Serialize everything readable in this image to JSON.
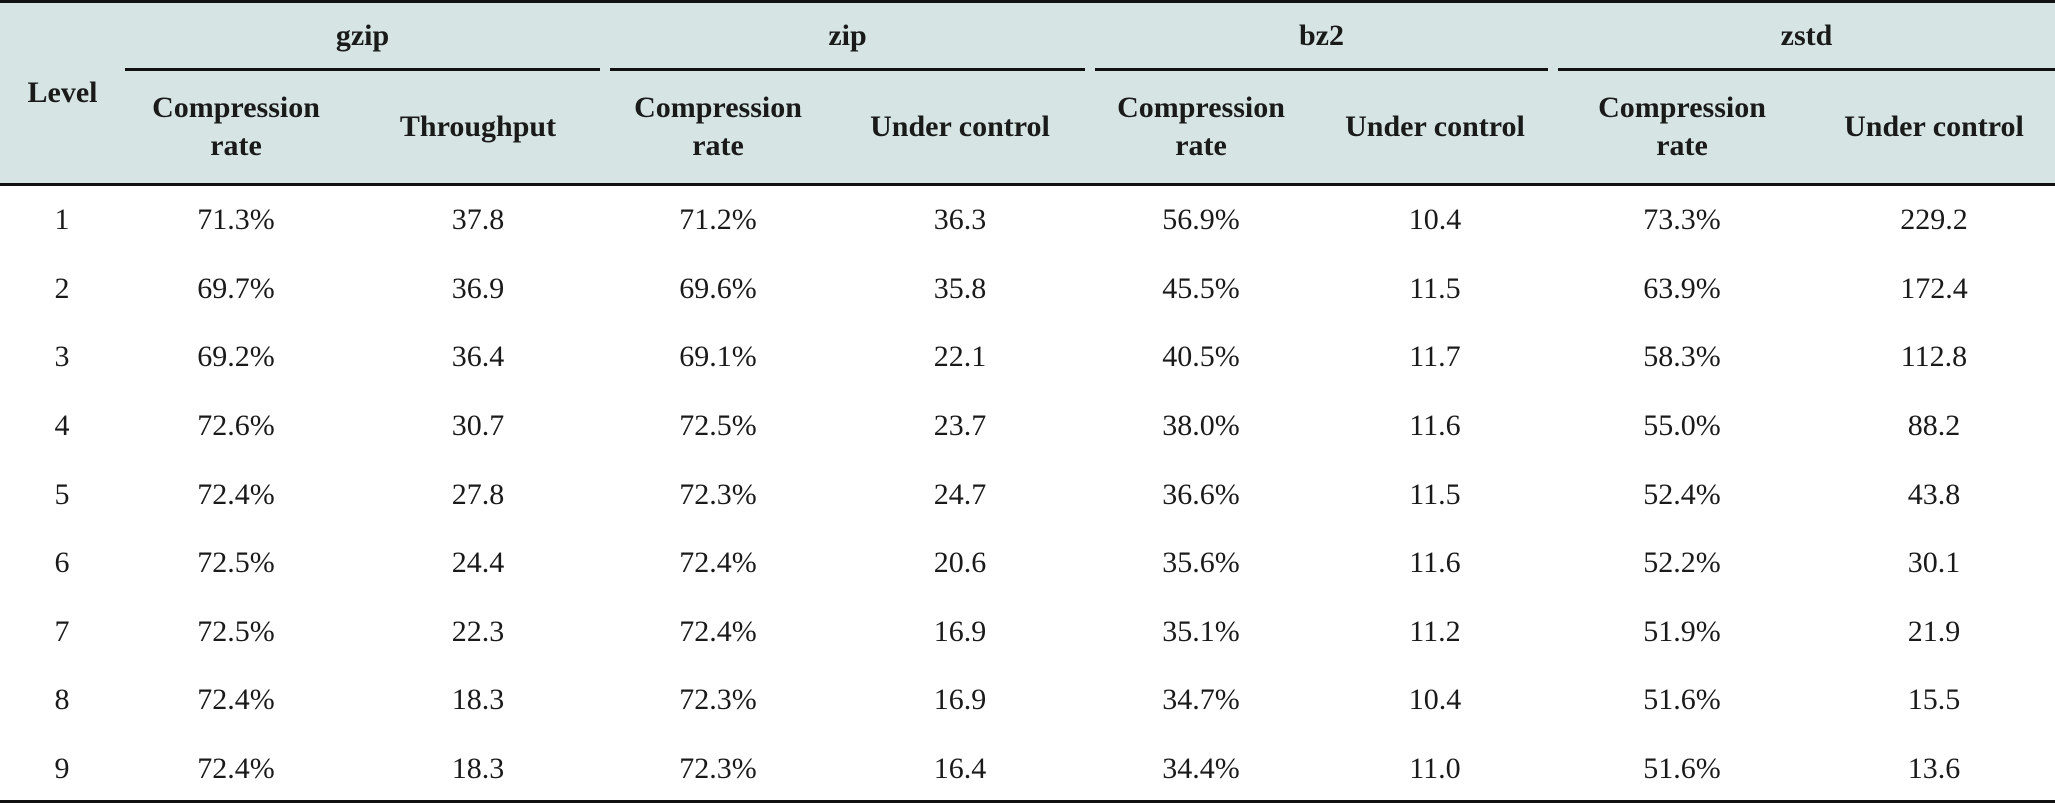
{
  "table": {
    "level_header": "Level",
    "groups": [
      {
        "name": "gzip",
        "col1": "Compression rate",
        "col2": "Throughput"
      },
      {
        "name": "zip",
        "col1": "Compression rate",
        "col2": "Under control"
      },
      {
        "name": "bz2",
        "col1": "Compression rate",
        "col2": "Under control"
      },
      {
        "name": "zstd",
        "col1": "Compression rate",
        "col2": "Under control"
      }
    ],
    "rows": [
      [
        "1",
        "71.3%",
        "37.8",
        "71.2%",
        "36.3",
        "56.9%",
        "10.4",
        "73.3%",
        "229.2"
      ],
      [
        "2",
        "69.7%",
        "36.9",
        "69.6%",
        "35.8",
        "45.5%",
        "11.5",
        "63.9%",
        "172.4"
      ],
      [
        "3",
        "69.2%",
        "36.4",
        "69.1%",
        "22.1",
        "40.5%",
        "11.7",
        "58.3%",
        "112.8"
      ],
      [
        "4",
        "72.6%",
        "30.7",
        "72.5%",
        "23.7",
        "38.0%",
        "11.6",
        "55.0%",
        "88.2"
      ],
      [
        "5",
        "72.4%",
        "27.8",
        "72.3%",
        "24.7",
        "36.6%",
        "11.5",
        "52.4%",
        "43.8"
      ],
      [
        "6",
        "72.5%",
        "24.4",
        "72.4%",
        "20.6",
        "35.6%",
        "11.6",
        "52.2%",
        "30.1"
      ],
      [
        "7",
        "72.5%",
        "22.3",
        "72.4%",
        "16.9",
        "35.1%",
        "11.2",
        "51.9%",
        "21.9"
      ],
      [
        "8",
        "72.4%",
        "18.3",
        "72.3%",
        "16.9",
        "34.7%",
        "10.4",
        "51.6%",
        "15.5"
      ],
      [
        "9",
        "72.4%",
        "18.3",
        "72.3%",
        "16.4",
        "34.4%",
        "11.0",
        "51.6%",
        "13.6"
      ]
    ]
  }
}
